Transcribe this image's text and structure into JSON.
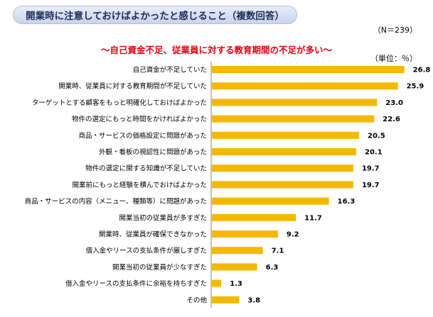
{
  "header": {
    "title": "開業時に注意しておけばよかったと感じること（複数回答）",
    "n_label": "（N＝239）",
    "subtitle": "～自己資金不足、従業員に対する教育期間の不足が多い～",
    "unit": "（単位：％）"
  },
  "colors": {
    "bar": "#f5b800",
    "subtitle": "#e60012",
    "title_text": "#1f2d5a"
  },
  "chart_data": {
    "type": "bar",
    "orientation": "horizontal",
    "title": "開業時に注意しておけばよかったと感じること（複数回答）",
    "subtitle": "～自己資金不足、従業員に対する教育期間の不足が多い～",
    "unit": "％",
    "categories": [
      "自己資金が不足していた",
      "開業時、従業員に対する教育期間が不足していた",
      "ターゲットとする顧客をもっと明確化しておけばよかった",
      "物件の選定にもっと時間をかければよかった",
      "商品・サービスの価格設定に問題があった",
      "外観・看板の視認性に問題があった",
      "物件の選定に関する知識が不足していた",
      "開業前にもっと経験を積んでおけばよかった",
      "商品・サービスの内容（メニュー、種類等）に問題があった",
      "開業当初の従業員が多すぎた",
      "開業時、従業員が確保できなかった",
      "借入金やリースの支払条件が厳しすぎた",
      "開業当初の従業員が少なすぎた",
      "借入金やリースの支払条件に余裕を持ちすぎた",
      "その他"
    ],
    "values": [
      26.8,
      25.9,
      23.0,
      22.6,
      20.5,
      20.1,
      19.7,
      19.7,
      16.3,
      11.7,
      9.2,
      7.1,
      6.3,
      1.3,
      3.8
    ],
    "value_labels": [
      "26.8",
      "25.9",
      "23.0",
      "22.6",
      "20.5",
      "20.1",
      "19.7",
      "19.7",
      "16.3",
      "11.7",
      "9.2",
      "7.1",
      "6.3",
      "1.3",
      "3.8"
    ],
    "xlim": [
      0,
      30
    ],
    "grid": false,
    "legend": "none"
  }
}
